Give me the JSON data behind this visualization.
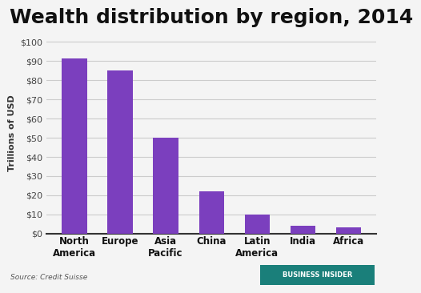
{
  "title": "Wealth distribution by region, 2014",
  "categories": [
    "North\nAmerica",
    "Europe",
    "Asia\nPacific",
    "China",
    "Latin\nAmerica",
    "India",
    "Africa"
  ],
  "values": [
    91,
    85,
    50,
    22,
    10,
    4,
    3
  ],
  "bar_color": "#7B3FBE",
  "ylabel": "Trillions of USD",
  "yticks": [
    0,
    10,
    20,
    30,
    40,
    50,
    60,
    70,
    80,
    90,
    100
  ],
  "ytick_labels": [
    "$0",
    "$10",
    "$20",
    "$30",
    "$40",
    "$50",
    "$60",
    "$70",
    "$80",
    "$90",
    "$100"
  ],
  "ylim": [
    0,
    105
  ],
  "background_color": "#f4f4f4",
  "plot_bg_color": "#f4f4f4",
  "grid_color": "#cccccc",
  "source_text": "Source: Credit Suisse",
  "logo_text": "BUSINESS INSIDER",
  "logo_bg": "#1a7f7a",
  "logo_text_color": "#ffffff",
  "title_fontsize": 18,
  "ylabel_fontsize": 8,
  "tick_fontsize": 8,
  "xlabel_fontsize": 8.5
}
